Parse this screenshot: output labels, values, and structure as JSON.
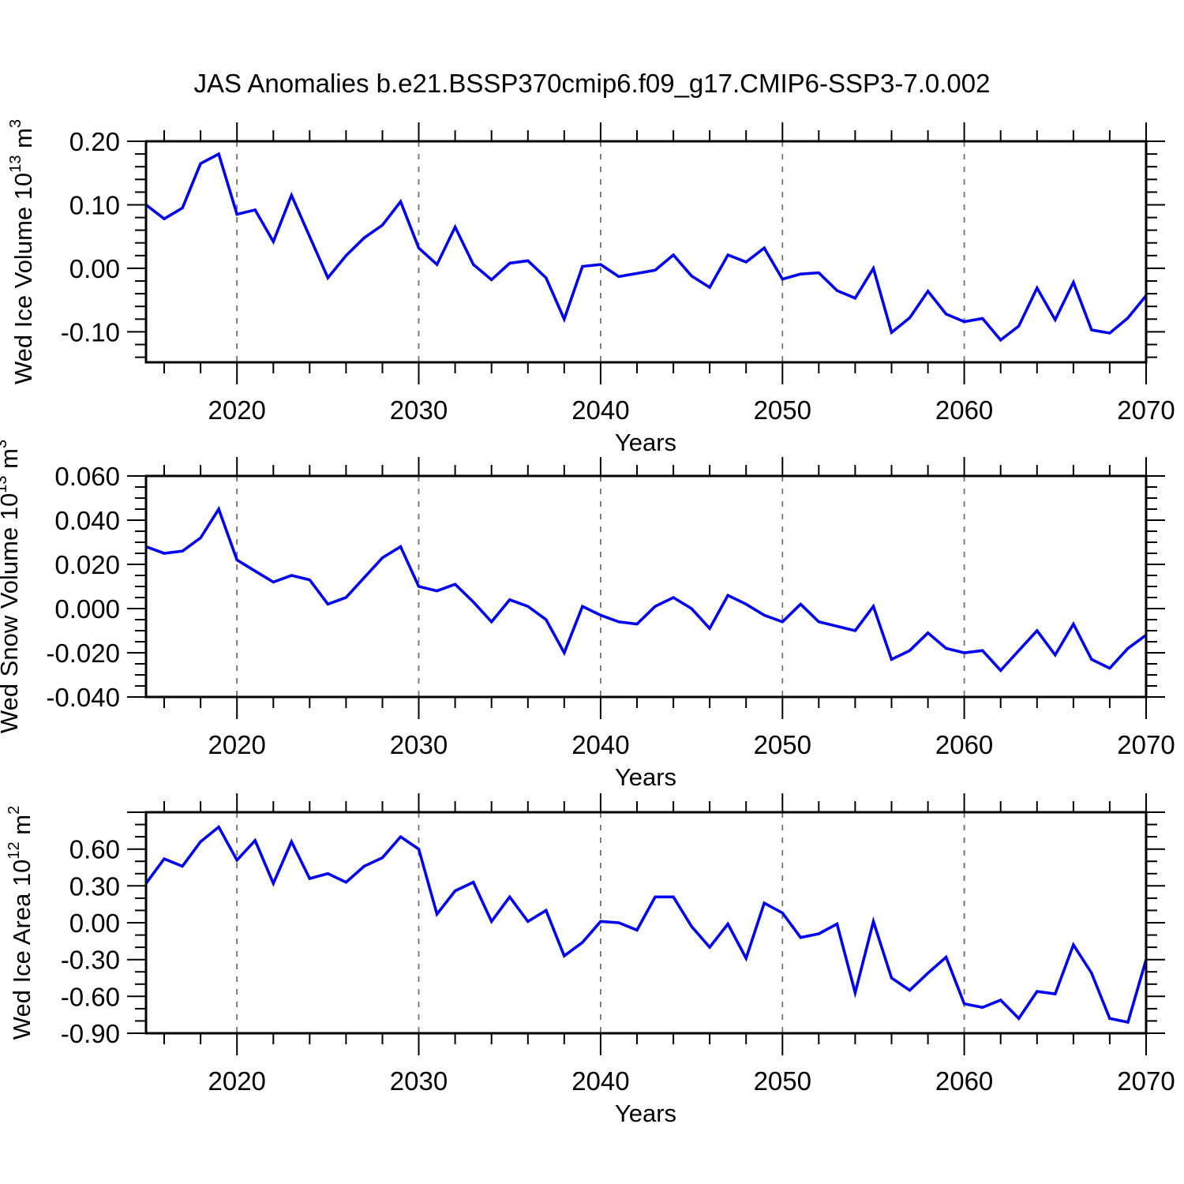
{
  "title": "JAS Anomalies b.e21.BSSP370cmip6.f09_g17.CMIP6-SSP3-7.0.002",
  "colors": {
    "series": "#0000f0",
    "grid": "#707070",
    "axis": "#000000",
    "background": "#ffffff",
    "text": "#000000"
  },
  "years": [
    2015,
    2016,
    2017,
    2018,
    2019,
    2020,
    2021,
    2022,
    2023,
    2024,
    2025,
    2026,
    2027,
    2028,
    2029,
    2030,
    2031,
    2032,
    2033,
    2034,
    2035,
    2036,
    2037,
    2038,
    2039,
    2040,
    2041,
    2042,
    2043,
    2044,
    2045,
    2046,
    2047,
    2048,
    2049,
    2050,
    2051,
    2052,
    2053,
    2054,
    2055,
    2056,
    2057,
    2058,
    2059,
    2060,
    2061,
    2062,
    2063,
    2064,
    2065,
    2066,
    2067,
    2068,
    2069,
    2070
  ],
  "chart_data": [
    {
      "id": "wed-ice-volume",
      "type": "line",
      "ylabel": "Wed Ice Volume 10^13 m^3",
      "ylabel_parts": {
        "pre": "Wed Ice Volume 10",
        "sup1": "13",
        "mid": " m",
        "sup2": "3"
      },
      "xlabel": "Years",
      "xlim": [
        2015,
        2070
      ],
      "ylim": [
        -0.148,
        0.2
      ],
      "ytick_values": [
        0.2,
        0.1,
        0.0,
        -0.1
      ],
      "ytick_labels": [
        "0.20",
        "0.10",
        "0.00",
        "-0.10"
      ],
      "yminor_step": 0.02,
      "xtick_values": [
        2020,
        2030,
        2040,
        2050,
        2060,
        2070
      ],
      "xtick_labels": [
        "2020",
        "2030",
        "2040",
        "2050",
        "2060",
        "2070"
      ],
      "xminor_step": 2,
      "gridline_years": [
        2020,
        2030,
        2040,
        2050,
        2060
      ],
      "grid": "vertical-dashed",
      "legend": "none",
      "values": [
        0.1,
        0.078,
        0.095,
        0.165,
        0.18,
        0.085,
        0.092,
        0.042,
        0.115,
        0.05,
        -0.015,
        0.02,
        0.048,
        0.068,
        0.105,
        0.032,
        0.006,
        0.065,
        0.006,
        -0.018,
        0.008,
        0.012,
        -0.015,
        -0.08,
        0.003,
        0.006,
        -0.013,
        -0.008,
        -0.003,
        0.021,
        -0.012,
        -0.03,
        0.021,
        0.01,
        0.032,
        -0.017,
        -0.009,
        -0.007,
        -0.035,
        -0.047,
        0.0,
        -0.101,
        -0.078,
        -0.036,
        -0.072,
        -0.084,
        -0.079,
        -0.113,
        -0.091,
        -0.031,
        -0.081,
        -0.022,
        -0.097,
        -0.102,
        -0.078,
        -0.043
      ]
    },
    {
      "id": "wed-snow-volume",
      "type": "line",
      "ylabel": "Wed Snow Volume 10^13 m^3",
      "ylabel_parts": {
        "pre": "Wed Snow Volume 10",
        "sup1": "13",
        "mid": " m",
        "sup2": "3"
      },
      "xlabel": "Years",
      "xlim": [
        2015,
        2070
      ],
      "ylim": [
        -0.04,
        0.06
      ],
      "ytick_values": [
        0.06,
        0.04,
        0.02,
        0.0,
        -0.02,
        -0.04
      ],
      "ytick_labels": [
        "0.060",
        "0.040",
        "0.020",
        "0.000",
        "-0.020",
        "-0.040"
      ],
      "yminor_step": 0.005,
      "xtick_values": [
        2020,
        2030,
        2040,
        2050,
        2060,
        2070
      ],
      "xtick_labels": [
        "2020",
        "2030",
        "2040",
        "2050",
        "2060",
        "2070"
      ],
      "xminor_step": 2,
      "gridline_years": [
        2020,
        2030,
        2040,
        2050,
        2060
      ],
      "grid": "vertical-dashed",
      "legend": "none",
      "values": [
        0.028,
        0.025,
        0.026,
        0.032,
        0.045,
        0.022,
        0.017,
        0.012,
        0.015,
        0.013,
        0.002,
        0.005,
        0.014,
        0.023,
        0.028,
        0.01,
        0.008,
        0.011,
        0.003,
        -0.006,
        0.004,
        0.001,
        -0.005,
        -0.02,
        0.001,
        -0.003,
        -0.006,
        -0.007,
        0.001,
        0.005,
        0.0,
        -0.009,
        0.006,
        0.002,
        -0.003,
        -0.006,
        0.002,
        -0.006,
        -0.008,
        -0.01,
        0.001,
        -0.023,
        -0.019,
        -0.011,
        -0.018,
        -0.02,
        -0.019,
        -0.028,
        -0.019,
        -0.01,
        -0.021,
        -0.007,
        -0.023,
        -0.027,
        -0.018,
        -0.012
      ]
    },
    {
      "id": "wed-ice-area",
      "type": "line",
      "ylabel": "Wed Ice Area 10^12 m^2",
      "ylabel_parts": {
        "pre": "Wed Ice Area 10",
        "sup1": "12",
        "mid": " m",
        "sup2": "2"
      },
      "xlabel": "Years",
      "xlim": [
        2015,
        2070
      ],
      "ylim": [
        -0.9,
        0.9
      ],
      "ytick_values": [
        0.9,
        0.6,
        0.3,
        0.0,
        -0.3,
        -0.6,
        -0.9
      ],
      "ytick_labels": [
        "",
        "0.60",
        "0.30",
        "0.00",
        "-0.30",
        "-0.60",
        "-0.90"
      ],
      "yminor_step": 0.1,
      "xtick_values": [
        2020,
        2030,
        2040,
        2050,
        2060,
        2070
      ],
      "xtick_labels": [
        "2020",
        "2030",
        "2040",
        "2050",
        "2060",
        "2070"
      ],
      "xminor_step": 2,
      "gridline_years": [
        2020,
        2030,
        2040,
        2050,
        2060
      ],
      "grid": "vertical-dashed",
      "legend": "none",
      "values": [
        0.32,
        0.52,
        0.46,
        0.66,
        0.78,
        0.51,
        0.67,
        0.32,
        0.66,
        0.36,
        0.4,
        0.33,
        0.46,
        0.53,
        0.7,
        0.6,
        0.07,
        0.26,
        0.33,
        0.01,
        0.21,
        0.01,
        0.1,
        -0.27,
        -0.16,
        0.01,
        0.0,
        -0.06,
        0.21,
        0.21,
        -0.03,
        -0.2,
        -0.01,
        -0.29,
        0.16,
        0.08,
        -0.12,
        -0.09,
        -0.01,
        -0.57,
        0.01,
        -0.45,
        -0.55,
        -0.41,
        -0.28,
        -0.66,
        -0.69,
        -0.63,
        -0.78,
        -0.56,
        -0.58,
        -0.18,
        -0.41,
        -0.78,
        -0.81,
        -0.3
      ]
    }
  ]
}
